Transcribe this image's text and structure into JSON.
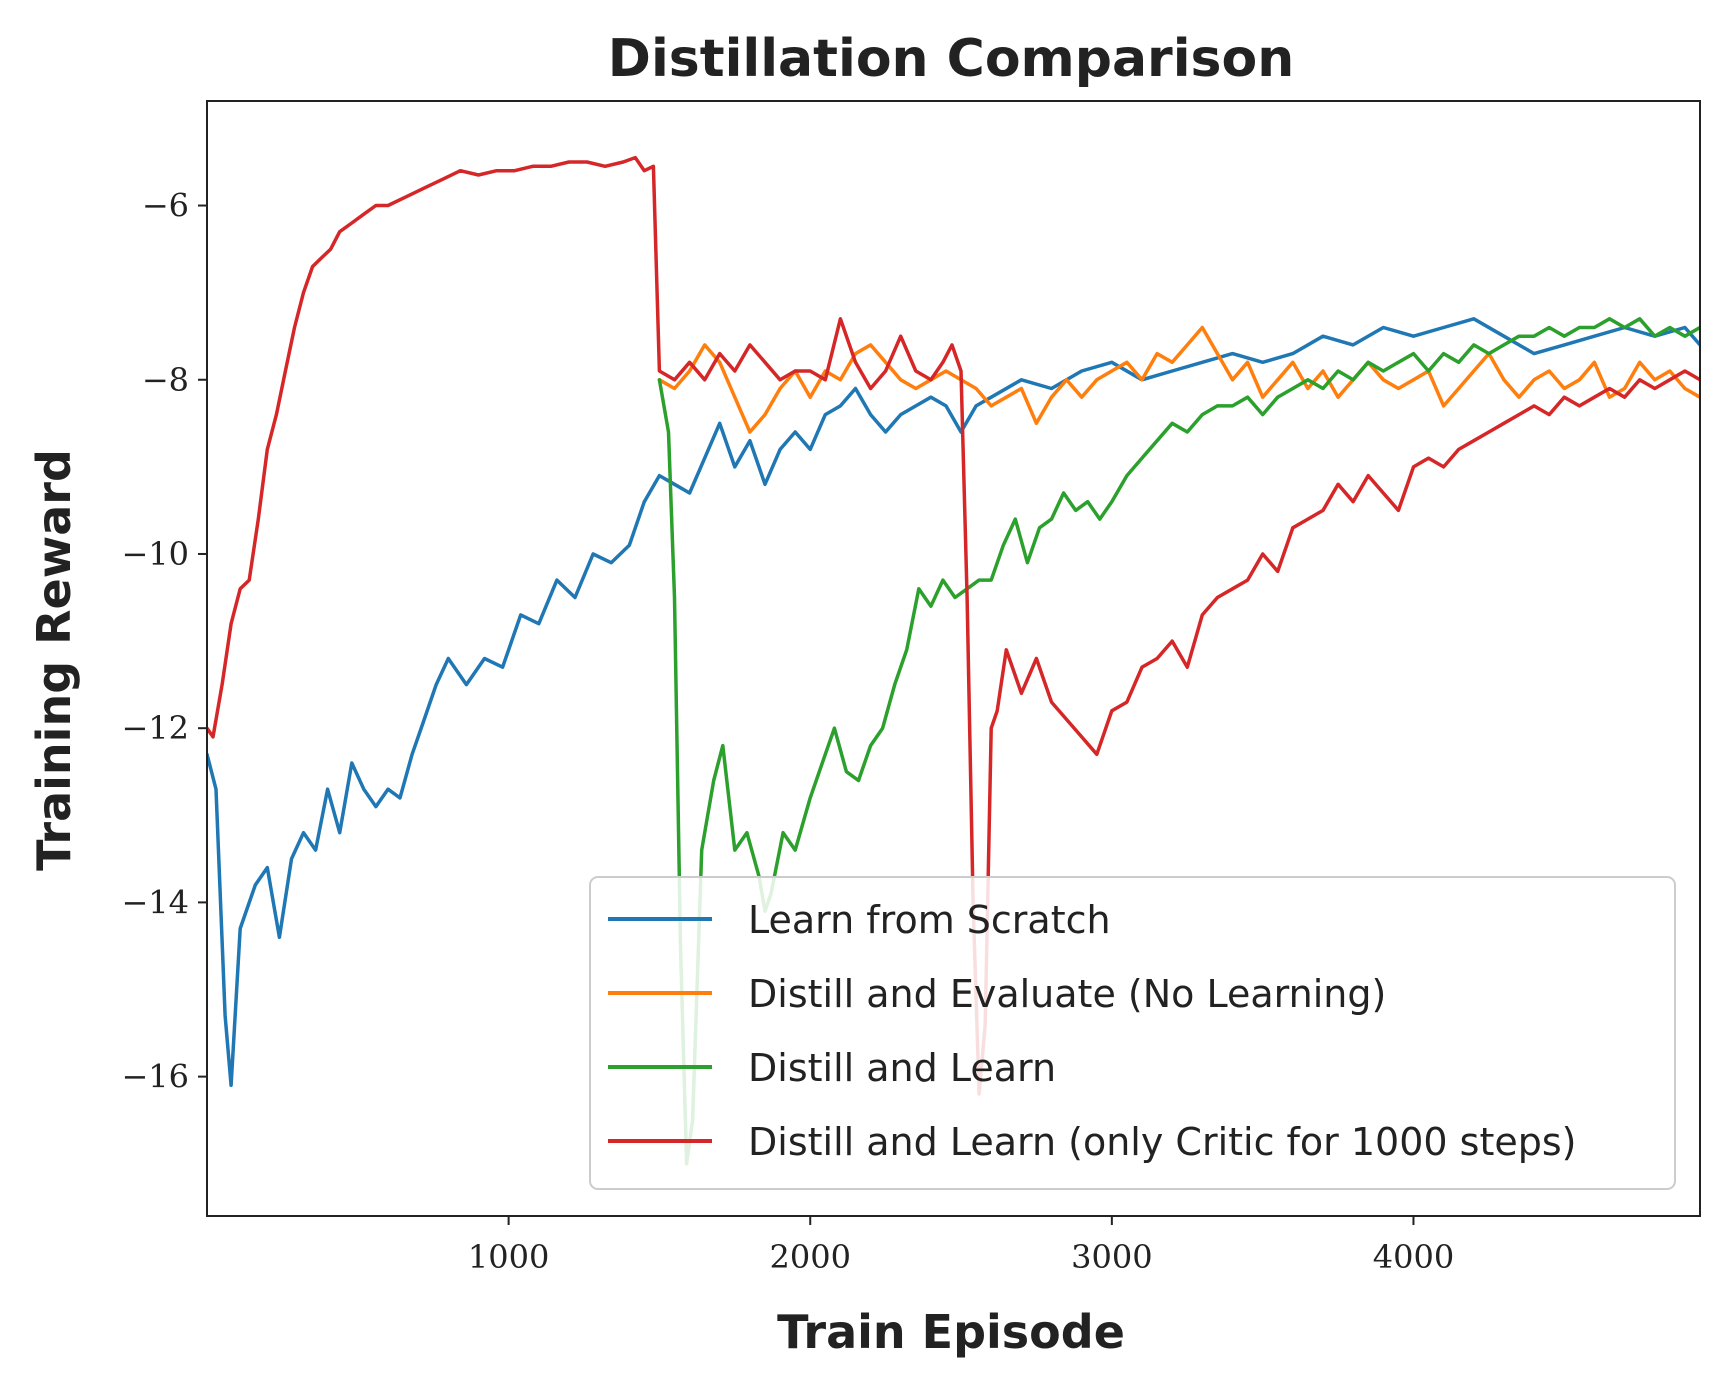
{
  "chart_data": {
    "type": "line",
    "title": "Distillation Comparison",
    "xlabel": "Train Episode",
    "ylabel": "Training Reward",
    "xlim": [
      0,
      4950
    ],
    "ylim": [
      -17.6,
      -4.8
    ],
    "xticks": [
      1000,
      2000,
      3000,
      4000
    ],
    "xtick_labels": [
      "1000",
      "2000",
      "3000",
      "4000"
    ],
    "yticks": [
      -16,
      -14,
      -12,
      -10,
      -8,
      -6
    ],
    "ytick_labels": [
      "−16",
      "−14",
      "−12",
      "−10",
      "−8",
      "−6"
    ],
    "grid": false,
    "legend_position": "lower-right",
    "series": [
      {
        "name": "Learn from Scratch",
        "color": "#1f77b4",
        "x": [
          0,
          30,
          60,
          80,
          110,
          160,
          200,
          240,
          280,
          320,
          360,
          400,
          440,
          480,
          520,
          560,
          600,
          640,
          680,
          720,
          760,
          800,
          860,
          920,
          980,
          1040,
          1100,
          1160,
          1220,
          1280,
          1340,
          1400,
          1450,
          1500,
          1550,
          1600,
          1650,
          1700,
          1750,
          1800,
          1850,
          1900,
          1950,
          2000,
          2050,
          2100,
          2150,
          2200,
          2250,
          2300,
          2350,
          2400,
          2450,
          2500,
          2550,
          2600,
          2700,
          2800,
          2900,
          3000,
          3100,
          3200,
          3300,
          3400,
          3500,
          3600,
          3700,
          3800,
          3900,
          4000,
          4100,
          4200,
          4300,
          4400,
          4500,
          4600,
          4700,
          4800,
          4900,
          4950
        ],
        "y": [
          -12.3,
          -12.7,
          -15.3,
          -16.1,
          -14.3,
          -13.8,
          -13.6,
          -14.4,
          -13.5,
          -13.2,
          -13.4,
          -12.7,
          -13.2,
          -12.4,
          -12.7,
          -12.9,
          -12.7,
          -12.8,
          -12.3,
          -11.9,
          -11.5,
          -11.2,
          -11.5,
          -11.2,
          -11.3,
          -10.7,
          -10.8,
          -10.3,
          -10.5,
          -10.0,
          -10.1,
          -9.9,
          -9.4,
          -9.1,
          -9.2,
          -9.3,
          -8.9,
          -8.5,
          -9.0,
          -8.7,
          -9.2,
          -8.8,
          -8.6,
          -8.8,
          -8.4,
          -8.3,
          -8.1,
          -8.4,
          -8.6,
          -8.4,
          -8.3,
          -8.2,
          -8.3,
          -8.6,
          -8.3,
          -8.2,
          -8.0,
          -8.1,
          -7.9,
          -7.8,
          -8.0,
          -7.9,
          -7.8,
          -7.7,
          -7.8,
          -7.7,
          -7.5,
          -7.6,
          -7.4,
          -7.5,
          -7.4,
          -7.3,
          -7.5,
          -7.7,
          -7.6,
          -7.5,
          -7.4,
          -7.5,
          -7.4,
          -7.6
        ]
      },
      {
        "name": "Distill and Evaluate (No Learning)",
        "color": "#ff7f0e",
        "x": [
          1500,
          1550,
          1600,
          1650,
          1700,
          1750,
          1800,
          1850,
          1900,
          1950,
          2000,
          2050,
          2100,
          2150,
          2200,
          2250,
          2300,
          2350,
          2400,
          2450,
          2500,
          2550,
          2600,
          2650,
          2700,
          2750,
          2800,
          2850,
          2900,
          2950,
          3000,
          3050,
          3100,
          3150,
          3200,
          3250,
          3300,
          3350,
          3400,
          3450,
          3500,
          3550,
          3600,
          3650,
          3700,
          3750,
          3800,
          3850,
          3900,
          3950,
          4000,
          4050,
          4100,
          4150,
          4200,
          4250,
          4300,
          4350,
          4400,
          4450,
          4500,
          4550,
          4600,
          4650,
          4700,
          4750,
          4800,
          4850,
          4900,
          4950
        ],
        "y": [
          -8.0,
          -8.1,
          -7.9,
          -7.6,
          -7.8,
          -8.2,
          -8.6,
          -8.4,
          -8.1,
          -7.9,
          -8.2,
          -7.9,
          -8.0,
          -7.7,
          -7.6,
          -7.8,
          -8.0,
          -8.1,
          -8.0,
          -7.9,
          -8.0,
          -8.1,
          -8.3,
          -8.2,
          -8.1,
          -8.5,
          -8.2,
          -8.0,
          -8.2,
          -8.0,
          -7.9,
          -7.8,
          -8.0,
          -7.7,
          -7.8,
          -7.6,
          -7.4,
          -7.7,
          -8.0,
          -7.8,
          -8.2,
          -8.0,
          -7.8,
          -8.1,
          -7.9,
          -8.2,
          -8.0,
          -7.8,
          -8.0,
          -8.1,
          -8.0,
          -7.9,
          -8.3,
          -8.1,
          -7.9,
          -7.7,
          -8.0,
          -8.2,
          -8.0,
          -7.9,
          -8.1,
          -8.0,
          -7.8,
          -8.2,
          -8.1,
          -7.8,
          -8.0,
          -7.9,
          -8.1,
          -8.2
        ]
      },
      {
        "name": "Distill and Learn",
        "color": "#2ca02c",
        "x": [
          1500,
          1530,
          1550,
          1570,
          1590,
          1610,
          1640,
          1680,
          1710,
          1750,
          1790,
          1830,
          1850,
          1870,
          1910,
          1950,
          2000,
          2050,
          2080,
          2120,
          2160,
          2200,
          2240,
          2280,
          2320,
          2360,
          2400,
          2440,
          2480,
          2520,
          2560,
          2600,
          2640,
          2680,
          2720,
          2760,
          2800,
          2840,
          2880,
          2920,
          2960,
          3000,
          3050,
          3100,
          3150,
          3200,
          3250,
          3300,
          3350,
          3400,
          3450,
          3500,
          3550,
          3600,
          3650,
          3700,
          3750,
          3800,
          3850,
          3900,
          3950,
          4000,
          4050,
          4100,
          4150,
          4200,
          4250,
          4300,
          4350,
          4400,
          4450,
          4500,
          4550,
          4600,
          4650,
          4700,
          4750,
          4800,
          4850,
          4900,
          4950
        ],
        "y": [
          -8.0,
          -8.6,
          -10.5,
          -14.5,
          -17.0,
          -16.5,
          -13.4,
          -12.6,
          -12.2,
          -13.4,
          -13.2,
          -13.7,
          -14.1,
          -13.9,
          -13.2,
          -13.4,
          -12.8,
          -12.3,
          -12.0,
          -12.5,
          -12.6,
          -12.2,
          -12.0,
          -11.5,
          -11.1,
          -10.4,
          -10.6,
          -10.3,
          -10.5,
          -10.4,
          -10.3,
          -10.3,
          -9.9,
          -9.6,
          -10.1,
          -9.7,
          -9.6,
          -9.3,
          -9.5,
          -9.4,
          -9.6,
          -9.4,
          -9.1,
          -8.9,
          -8.7,
          -8.5,
          -8.6,
          -8.4,
          -8.3,
          -8.3,
          -8.2,
          -8.4,
          -8.2,
          -8.1,
          -8.0,
          -8.1,
          -7.9,
          -8.0,
          -7.8,
          -7.9,
          -7.8,
          -7.7,
          -7.9,
          -7.7,
          -7.8,
          -7.6,
          -7.7,
          -7.6,
          -7.5,
          -7.5,
          -7.4,
          -7.5,
          -7.4,
          -7.4,
          -7.3,
          -7.4,
          -7.3,
          -7.5,
          -7.4,
          -7.5,
          -7.4
        ]
      },
      {
        "name": "Distill and Learn (only Critic for 1000 steps)",
        "color": "#d62728",
        "x": [
          0,
          20,
          50,
          80,
          110,
          140,
          170,
          200,
          230,
          260,
          290,
          320,
          350,
          380,
          410,
          440,
          480,
          520,
          560,
          600,
          660,
          720,
          780,
          840,
          900,
          960,
          1020,
          1080,
          1140,
          1200,
          1260,
          1320,
          1380,
          1420,
          1450,
          1480,
          1500,
          1550,
          1600,
          1650,
          1700,
          1750,
          1800,
          1850,
          1900,
          1950,
          2000,
          2050,
          2100,
          2150,
          2200,
          2250,
          2300,
          2350,
          2400,
          2440,
          2470,
          2500,
          2520,
          2540,
          2560,
          2580,
          2600,
          2620,
          2650,
          2700,
          2750,
          2800,
          2850,
          2900,
          2950,
          3000,
          3050,
          3100,
          3150,
          3200,
          3250,
          3300,
          3350,
          3400,
          3450,
          3500,
          3550,
          3600,
          3650,
          3700,
          3750,
          3800,
          3850,
          3900,
          3950,
          4000,
          4050,
          4100,
          4150,
          4200,
          4250,
          4300,
          4350,
          4400,
          4450,
          4500,
          4550,
          4600,
          4650,
          4700,
          4750,
          4800,
          4850,
          4900,
          4950
        ],
        "y": [
          -12.0,
          -12.1,
          -11.5,
          -10.8,
          -10.4,
          -10.3,
          -9.6,
          -8.8,
          -8.4,
          -7.9,
          -7.4,
          -7.0,
          -6.7,
          -6.6,
          -6.5,
          -6.3,
          -6.2,
          -6.1,
          -6.0,
          -6.0,
          -5.9,
          -5.8,
          -5.7,
          -5.6,
          -5.65,
          -5.6,
          -5.6,
          -5.55,
          -5.55,
          -5.5,
          -5.5,
          -5.55,
          -5.5,
          -5.45,
          -5.6,
          -5.55,
          -7.9,
          -8.0,
          -7.8,
          -8.0,
          -7.7,
          -7.9,
          -7.6,
          -7.8,
          -8.0,
          -7.9,
          -7.9,
          -8.0,
          -7.3,
          -7.8,
          -8.1,
          -7.9,
          -7.5,
          -7.9,
          -8.0,
          -7.8,
          -7.6,
          -7.9,
          -10.5,
          -14.0,
          -16.2,
          -15.4,
          -12.0,
          -11.8,
          -11.1,
          -11.6,
          -11.2,
          -11.7,
          -11.9,
          -12.1,
          -12.3,
          -11.8,
          -11.7,
          -11.3,
          -11.2,
          -11.0,
          -11.3,
          -10.7,
          -10.5,
          -10.4,
          -10.3,
          -10.0,
          -10.2,
          -9.7,
          -9.6,
          -9.5,
          -9.2,
          -9.4,
          -9.1,
          -9.3,
          -9.5,
          -9.0,
          -8.9,
          -9.0,
          -8.8,
          -8.7,
          -8.6,
          -8.5,
          -8.4,
          -8.3,
          -8.4,
          -8.2,
          -8.3,
          -8.2,
          -8.1,
          -8.2,
          -8.0,
          -8.1,
          -8.0,
          -7.9,
          -8.0
        ]
      }
    ]
  }
}
